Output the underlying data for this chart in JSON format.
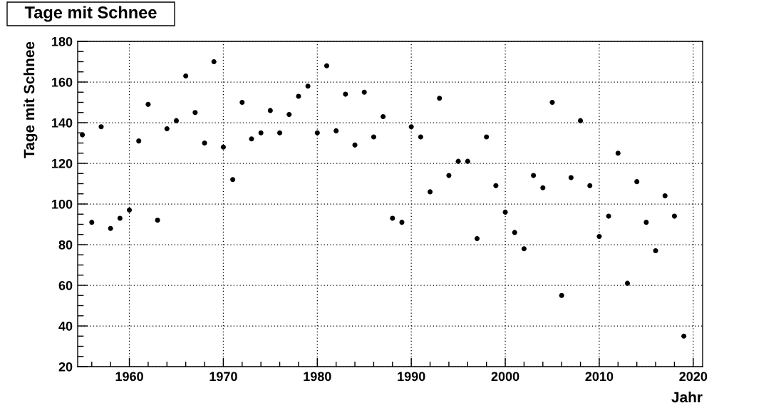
{
  "chart_data": {
    "type": "scatter",
    "title": "Tage mit Schnee",
    "xlabel": "Jahr",
    "ylabel": "Tage mit Schnee",
    "x": [
      1955,
      1956,
      1957,
      1958,
      1959,
      1960,
      1961,
      1962,
      1963,
      1964,
      1965,
      1966,
      1967,
      1968,
      1969,
      1970,
      1971,
      1972,
      1973,
      1974,
      1975,
      1976,
      1977,
      1978,
      1979,
      1980,
      1981,
      1982,
      1983,
      1984,
      1985,
      1986,
      1987,
      1988,
      1989,
      1990,
      1991,
      1992,
      1993,
      1994,
      1995,
      1996,
      1997,
      1998,
      1999,
      2000,
      2001,
      2002,
      2003,
      2004,
      2005,
      2006,
      2007,
      2008,
      2009,
      2010,
      2011,
      2012,
      2013,
      2014,
      2015,
      2016,
      2017,
      2018,
      2019
    ],
    "values": [
      134,
      91,
      138,
      88,
      93,
      97,
      131,
      149,
      92,
      137,
      141,
      163,
      145,
      130,
      170,
      128,
      112,
      150,
      132,
      135,
      146,
      135,
      144,
      153,
      158,
      135,
      168,
      136,
      154,
      129,
      155,
      133,
      143,
      93,
      91,
      138,
      133,
      106,
      152,
      114,
      121,
      121,
      83,
      133,
      109,
      96,
      86,
      78,
      114,
      108,
      150,
      55,
      113,
      141,
      109,
      84,
      94,
      125,
      61,
      111,
      91,
      77,
      104,
      94,
      35
    ],
    "color": "#000000",
    "marker": "circle",
    "xlim": [
      1954.5,
      2021
    ],
    "ylim": [
      20,
      180
    ],
    "xticks": [
      1960,
      1970,
      1980,
      1990,
      2000,
      2010,
      2020
    ],
    "yticks": [
      20,
      40,
      60,
      80,
      100,
      120,
      140,
      160,
      180
    ],
    "grid": true
  }
}
